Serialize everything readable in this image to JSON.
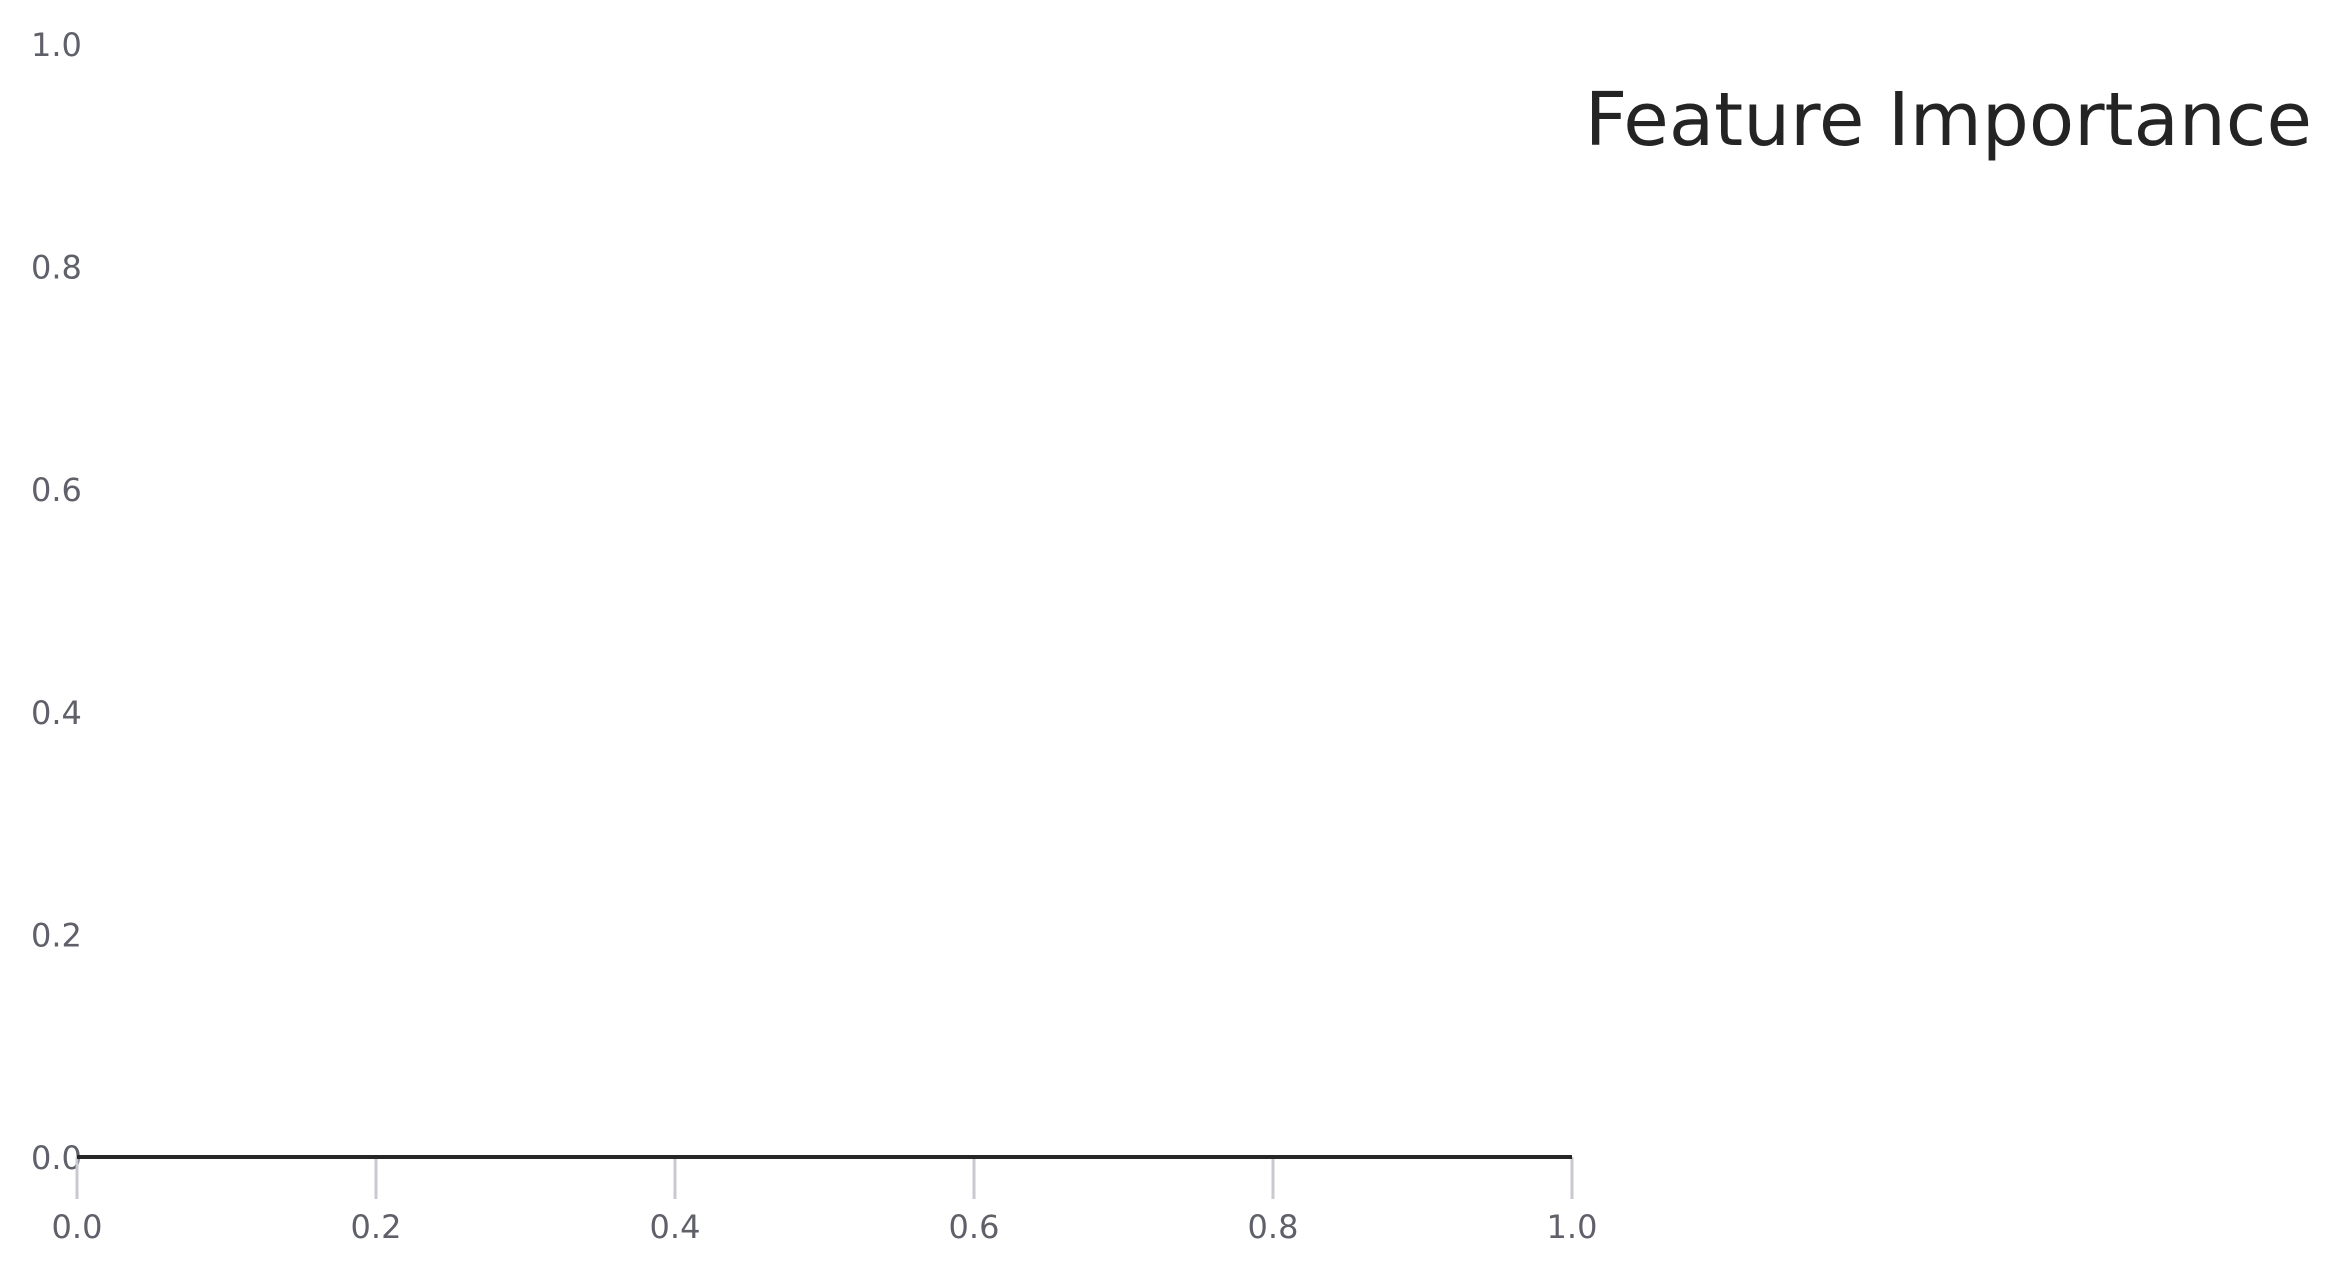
{
  "chart_data": {
    "type": "bar",
    "title": "Feature Importance",
    "xlabel": "",
    "ylabel": "",
    "categories": [],
    "series": [],
    "xlim": [
      0,
      1
    ],
    "ylim": [
      0,
      1
    ],
    "xticks": [
      "0.0",
      "0.2",
      "0.4",
      "0.6",
      "0.8",
      "1.0"
    ],
    "yticks": [
      "0.0",
      "0.2",
      "0.4",
      "0.6",
      "0.8",
      "1.0"
    ],
    "grid": false,
    "legend": "none",
    "colors": {
      "axis_line": "#262626",
      "tick_mark": "#c9cad0",
      "tick_label": "#5f6069",
      "title": "#242424"
    }
  }
}
